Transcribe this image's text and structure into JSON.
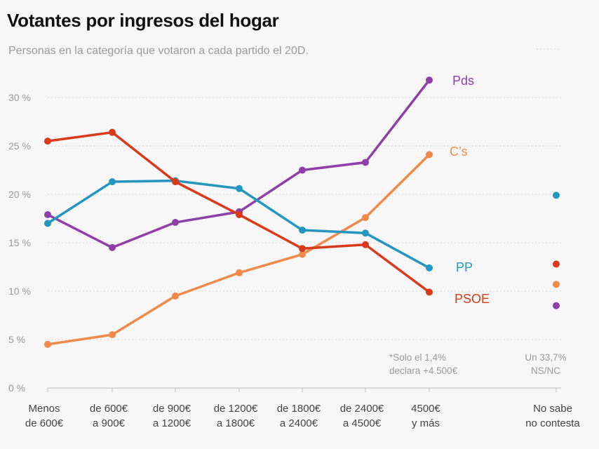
{
  "title": "Votantes por ingresos del hogar",
  "subtitle": "Personas en la categoría que votaron a cada partido el 20D.",
  "chart_data": {
    "type": "line",
    "title": "Votantes por ingresos del hogar",
    "subtitle": "Personas en la categoría que votaron a cada partido el 20D.",
    "xlabel": "",
    "ylabel": "",
    "ylim": [
      0,
      32
    ],
    "y_ticks": [
      0,
      5,
      10,
      15,
      20,
      25,
      30
    ],
    "y_tick_labels": [
      "0 %",
      "5 %",
      "10 %",
      "15 %",
      "20 %",
      "25 %",
      "30 %"
    ],
    "categories": [
      [
        "Menos",
        "de 600€"
      ],
      [
        "de 600€",
        "a 900€"
      ],
      [
        "de 900€",
        "a 1200€"
      ],
      [
        "de 1200€",
        "a 1800€"
      ],
      [
        "de 1800€",
        "a 2400€"
      ],
      [
        "de 2400€",
        "a 4500€"
      ],
      [
        "4500€",
        "y más"
      ]
    ],
    "extra_category": [
      "No sabe",
      "no contesta"
    ],
    "series": [
      {
        "name": "Pds",
        "color": "#8e3fa8",
        "values": [
          17.9,
          14.5,
          17.1,
          18.2,
          22.5,
          23.3,
          31.8
        ],
        "no_sabe": 8.5
      },
      {
        "name": "C's",
        "label": "C’s",
        "color": "#ef8a4b",
        "values": [
          4.5,
          5.5,
          9.5,
          11.9,
          13.8,
          17.6,
          24.1
        ],
        "no_sabe": 10.7
      },
      {
        "name": "PP",
        "color": "#2596be",
        "values": [
          17.0,
          21.3,
          21.4,
          20.6,
          16.3,
          16.0,
          12.4
        ],
        "no_sabe": 19.9
      },
      {
        "name": "PSOE",
        "color": "#d93a1b",
        "values": [
          25.5,
          26.4,
          21.3,
          17.9,
          14.4,
          14.8,
          9.9
        ],
        "no_sabe": 12.8
      }
    ],
    "annotations": [
      {
        "lines": [
          "*Solo el 1,4%",
          "declara +4.500€"
        ]
      },
      {
        "lines": [
          "Un 33,7%",
          "NS/NC"
        ]
      }
    ],
    "grid": true
  }
}
